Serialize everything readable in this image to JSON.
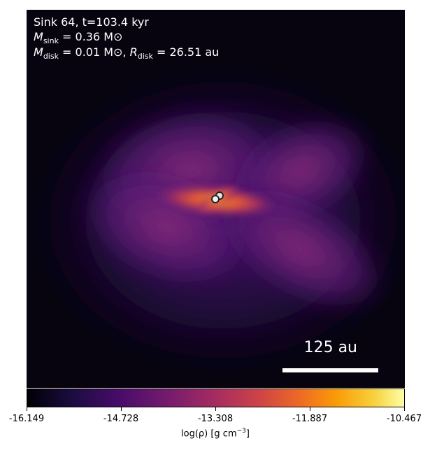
{
  "panel": {
    "title": "Sink 64, t=103.4 kyr",
    "mass_line": {
      "M": "M",
      "sub": "sink",
      "rest": " = 0.36 M⊙"
    },
    "disk_line": {
      "M": "M",
      "sub_m": "disk",
      "mid": " = 0.01 M⊙, ",
      "R": "R",
      "sub_r": "disk",
      "rest": " = 26.51 au"
    },
    "scale_label": "125 au"
  },
  "colorbar": {
    "ticks": [
      "-16.149",
      "-14.728",
      "-13.308",
      "-11.887",
      "-10.467"
    ],
    "label_main": "log(ρ) [g cm",
    "label_sup": "−3",
    "label_end": "]",
    "colormap": "inferno"
  },
  "sinks": {
    "count": 2
  }
}
